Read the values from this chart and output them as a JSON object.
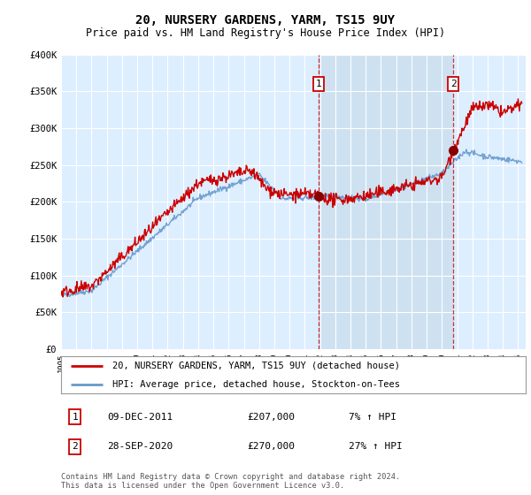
{
  "title": "20, NURSERY GARDENS, YARM, TS15 9UY",
  "subtitle": "Price paid vs. HM Land Registry's House Price Index (HPI)",
  "ylabel_ticks": [
    "£0",
    "£50K",
    "£100K",
    "£150K",
    "£200K",
    "£250K",
    "£300K",
    "£350K",
    "£400K"
  ],
  "ylim": [
    0,
    400000
  ],
  "xlim_start": 1995.0,
  "xlim_end": 2025.5,
  "plot_bg_color": "#ddeeff",
  "legend1_label": "20, NURSERY GARDENS, YARM, TS15 9UY (detached house)",
  "legend2_label": "HPI: Average price, detached house, Stockton-on-Tees",
  "line1_color": "#cc0000",
  "line2_color": "#6699cc",
  "shade_color": "#cce0f0",
  "annotation1_num": "1",
  "annotation1_date": "09-DEC-2011",
  "annotation1_price": "£207,000",
  "annotation1_hpi": "7% ↑ HPI",
  "annotation2_num": "2",
  "annotation2_date": "28-SEP-2020",
  "annotation2_price": "£270,000",
  "annotation2_hpi": "27% ↑ HPI",
  "footer": "Contains HM Land Registry data © Crown copyright and database right 2024.\nThis data is licensed under the Open Government Licence v3.0.",
  "marker1_x": 2011.92,
  "marker1_y": 207000,
  "marker2_x": 2020.75,
  "marker2_y": 270000
}
